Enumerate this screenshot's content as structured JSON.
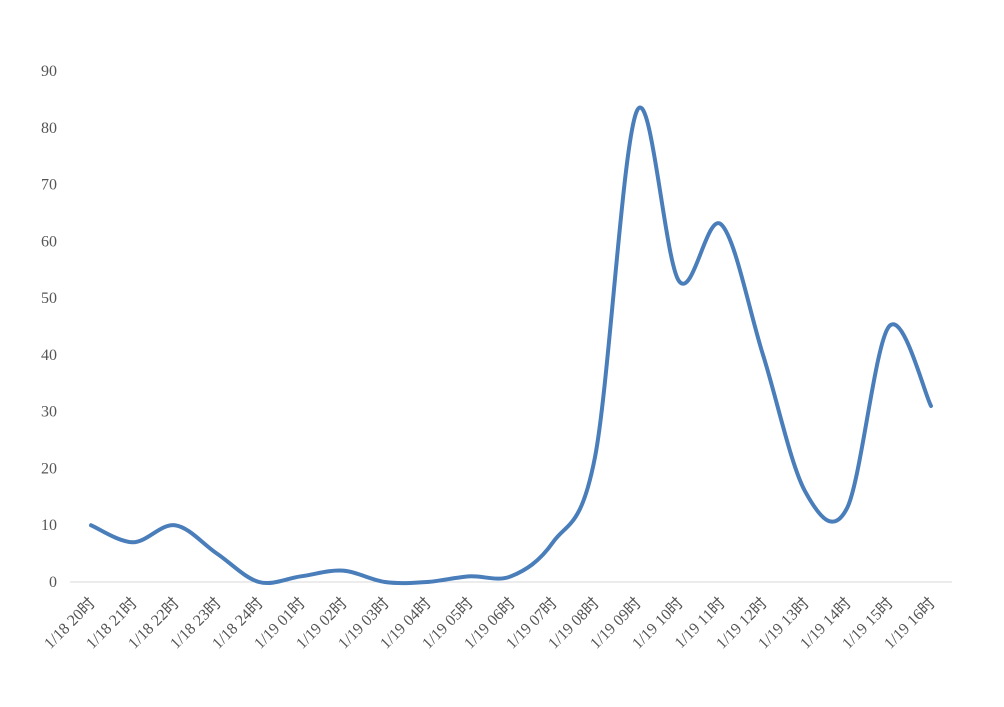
{
  "chart_data": {
    "type": "line",
    "categories": [
      "1/18 20时",
      "1/18 21时",
      "1/18 22时",
      "1/18 23时",
      "1/18 24时",
      "1/19 01时",
      "1/19 02时",
      "1/19 03时",
      "1/19 04时",
      "1/19 05时",
      "1/19 06时",
      "1/19 07时",
      "1/19 08时",
      "1/19 09时",
      "1/19 10时",
      "1/19 11时",
      "1/19 12时",
      "1/19 13时",
      "1/19 14时",
      "1/19 15时",
      "1/19 16时"
    ],
    "values": [
      10,
      7,
      10,
      5,
      0,
      1,
      2,
      0,
      0,
      1,
      1,
      7,
      22,
      83,
      53,
      63,
      40,
      16,
      13,
      45,
      31
    ],
    "color": "#4a7ebb",
    "smooth": true,
    "ylim": [
      0,
      90
    ],
    "yticks": [
      0,
      10,
      20,
      30,
      40,
      50,
      60,
      70,
      80,
      90
    ]
  }
}
